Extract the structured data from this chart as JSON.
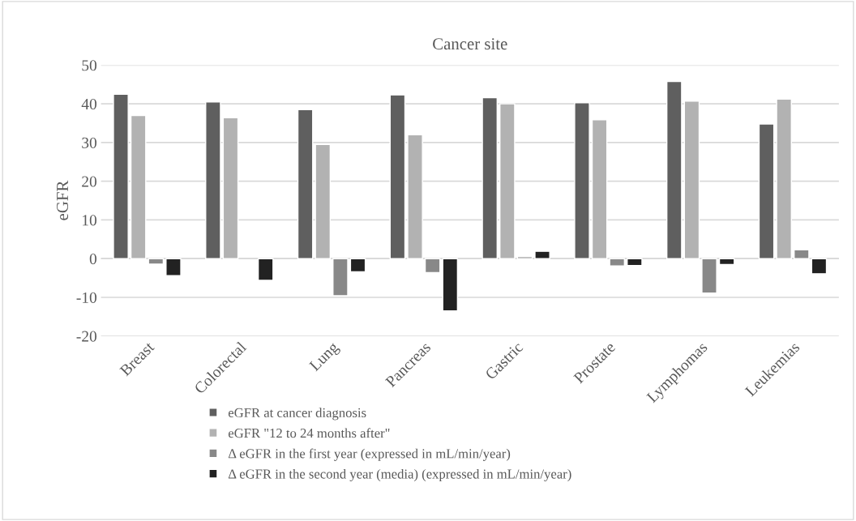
{
  "chart_data": {
    "type": "bar",
    "title": "Cancer site",
    "ylabel": "eGFR",
    "categories": [
      "Breast",
      "Colorectal",
      "Lung",
      "Pancreas",
      "Gastric",
      "Prostate",
      "Lymphomas",
      "Leukemias"
    ],
    "series": [
      {
        "name": "eGFR at cancer diagnosis",
        "color": "#5f5f5f",
        "values": [
          42.5,
          40.5,
          38.5,
          42.3,
          41.6,
          40.3,
          45.8,
          34.8
        ]
      },
      {
        "name": "eGFR \"12 to 24 months after\"",
        "color": "#b2b2b2",
        "values": [
          37.0,
          36.4,
          29.5,
          32.0,
          40.0,
          35.9,
          40.7,
          41.2
        ]
      },
      {
        "name": "Δ eGFR in the first year (expressed in mL/min/year)",
        "color": "#888888",
        "values": [
          -1.4,
          null,
          -9.6,
          -3.6,
          0.5,
          -1.9,
          -8.9,
          2.3
        ]
      },
      {
        "name": "Δ eGFR in the second year (media) (expressed in mL/min/year)",
        "color": "#222222",
        "values": [
          -4.4,
          -5.6,
          -3.4,
          -13.5,
          1.9,
          -1.8,
          -1.5,
          -3.9
        ]
      }
    ],
    "ylim": [
      -20,
      50
    ],
    "yticks": [
      -20,
      -10,
      0,
      10,
      20,
      30,
      40,
      50
    ],
    "grid": "y",
    "legend": "bottom"
  }
}
